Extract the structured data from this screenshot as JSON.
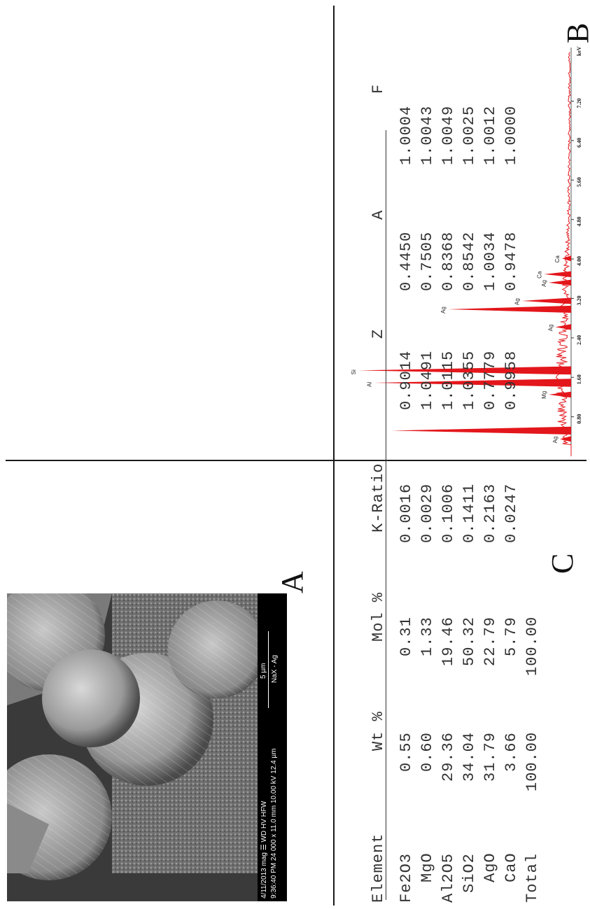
{
  "panels": {
    "a_letter": "A",
    "b_letter": "B",
    "c_letter": "C"
  },
  "sem_databar": {
    "line1_left": "4/11/2013  mag ☰   WD    HV    HFW",
    "line2_left": "9:36:40 PM 24 000 x 11.0 mm 10.00 kV 12.4 µm",
    "scale_label": "5 µm",
    "sample": "NaX - Ag"
  },
  "chart_data": {
    "type": "line",
    "title": "",
    "xlabel": "",
    "x_unit": "keV",
    "xlim": [
      0,
      8.2
    ],
    "xticks": [
      "0.80",
      "1.60",
      "2.40",
      "3.20",
      "4.00",
      "4.80",
      "5.60",
      "6.40",
      "7.20"
    ],
    "peaks": [
      {
        "label": "Ag",
        "x": 0.35,
        "y": 0.05
      },
      {
        "label": "",
        "x": 0.52,
        "y": 0.8
      },
      {
        "label": "Mg",
        "x": 1.25,
        "y": 0.1
      },
      {
        "label": "Al",
        "x": 1.49,
        "y": 0.88
      },
      {
        "label": "Si",
        "x": 1.74,
        "y": 0.95
      },
      {
        "label": "Ag",
        "x": 2.62,
        "y": 0.07
      },
      {
        "label": "Ag",
        "x": 2.98,
        "y": 0.55
      },
      {
        "label": "Ag",
        "x": 3.15,
        "y": 0.22
      },
      {
        "label": "Ag",
        "x": 3.52,
        "y": 0.1
      },
      {
        "label": "Ca",
        "x": 3.69,
        "y": 0.12
      },
      {
        "label": "Ca",
        "x": 4.01,
        "y": 0.04
      }
    ]
  },
  "table": {
    "headers": [
      "Element",
      "Wt %",
      "Mol %",
      "K-Ratio",
      "Z",
      "A",
      "F"
    ],
    "rows": [
      [
        "Fe2O3",
        "0.55",
        "0.31",
        "0.0016",
        "0.9014",
        "0.4450",
        "1.0004"
      ],
      [
        "MgO",
        "0.60",
        "1.33",
        "0.0029",
        "1.0491",
        "0.7505",
        "1.0043"
      ],
      [
        "Al2O5",
        "29.36",
        "19.46",
        "0.1006",
        "1.0115",
        "0.8368",
        "1.0049"
      ],
      [
        "SiO2",
        "34.04",
        "50.32",
        "0.1411",
        "1.0355",
        "0.8542",
        "1.0025"
      ],
      [
        "AgO",
        "31.79",
        "22.79",
        "0.2163",
        "0.7779",
        "1.0034",
        "1.0012"
      ],
      [
        "CaO",
        "3.66",
        "5.79",
        "0.0247",
        "0.9958",
        "0.9478",
        "1.0000"
      ],
      [
        "Total",
        "100.00",
        "100.00",
        "",
        "",
        "",
        ""
      ]
    ]
  },
  "colors": {
    "spectrum": "#e3161b",
    "frame": "#1a1a1a",
    "table_text": "#333333"
  }
}
